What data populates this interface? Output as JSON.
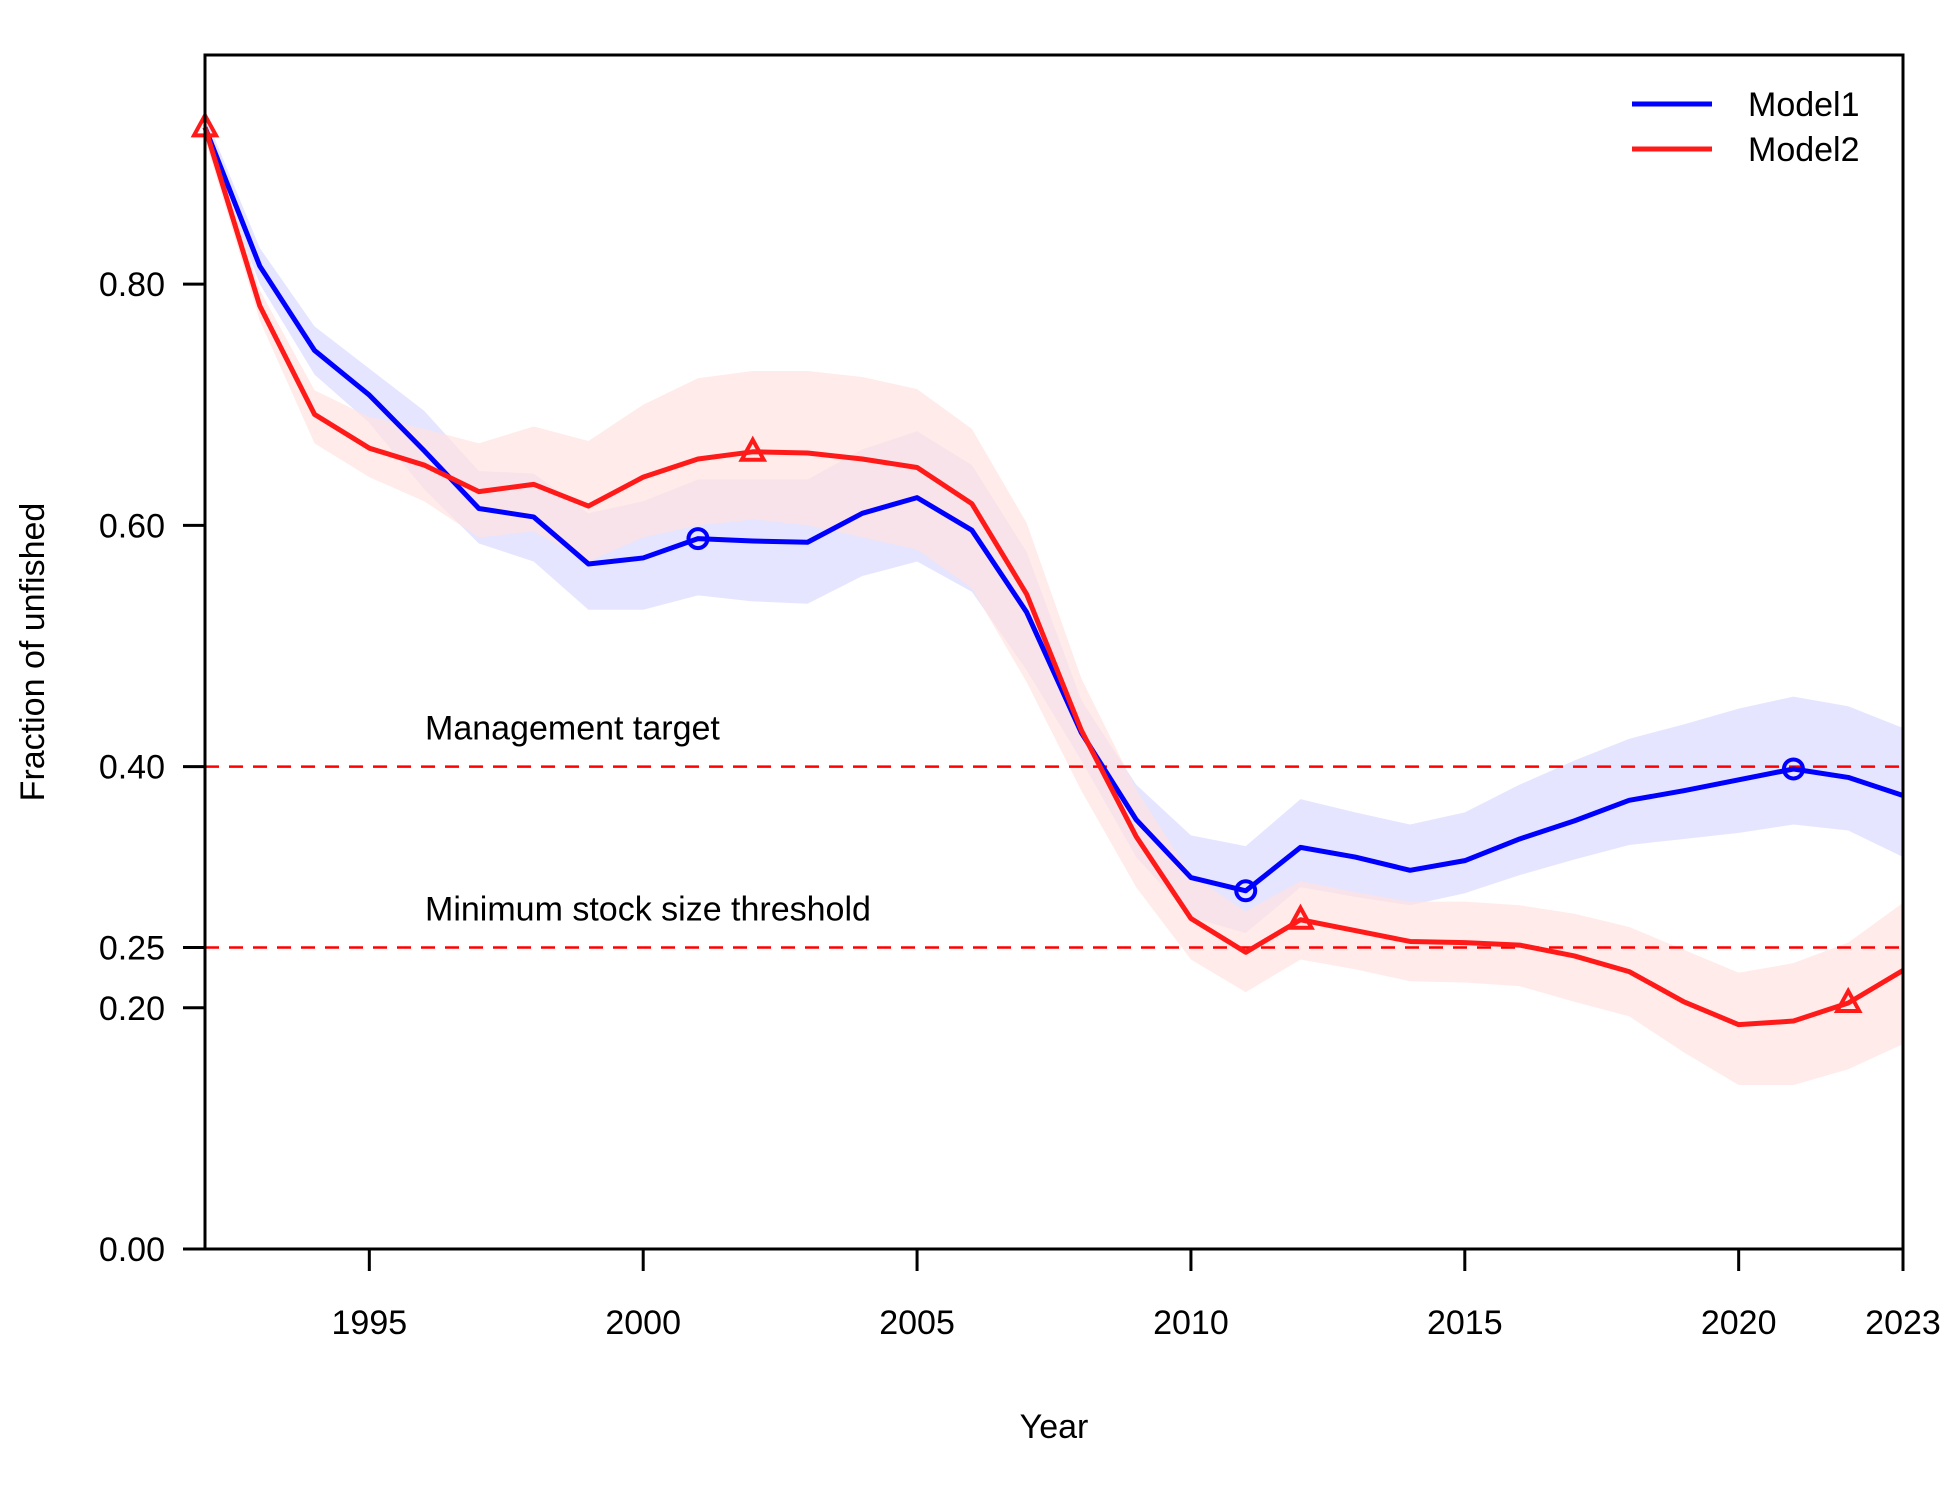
{
  "chart_data": {
    "type": "line",
    "title": "",
    "xlabel": "Year",
    "ylabel": "Fraction of unfished",
    "xlim": [
      1992,
      2023
    ],
    "ylim": [
      0,
      0.99
    ],
    "x_ticks": [
      1995,
      2000,
      2005,
      2010,
      2015,
      2020,
      2023
    ],
    "y_ticks": [
      0.0,
      0.2,
      0.25,
      0.4,
      0.6,
      0.8
    ],
    "y_tick_labels": [
      "0.00",
      "0.20",
      "0.25",
      "0.40",
      "0.60",
      "0.80"
    ],
    "legend": {
      "position": "top-right"
    },
    "reference_lines": [
      {
        "y": 0.4,
        "label": "Management target",
        "color": "#ff0000",
        "style": "dashed"
      },
      {
        "y": 0.25,
        "label": "Minimum stock size threshold",
        "color": "#ff0000",
        "style": "dashed"
      }
    ],
    "x": [
      1992,
      1993,
      1994,
      1995,
      1996,
      1997,
      1998,
      1999,
      2000,
      2001,
      2002,
      2003,
      2004,
      2005,
      2006,
      2007,
      2008,
      2009,
      2010,
      2011,
      2012,
      2013,
      2014,
      2015,
      2016,
      2017,
      2018,
      2019,
      2020,
      2021,
      2022,
      2023
    ],
    "series": [
      {
        "name": "Model1",
        "color": "#0000ff",
        "band_color": "#e0e0ff",
        "marker": "circle",
        "marker_years": [
          2001,
          2011,
          2021
        ],
        "values": [
          0.93,
          0.815,
          0.745,
          0.708,
          0.662,
          0.614,
          0.607,
          0.568,
          0.573,
          0.589,
          0.587,
          0.586,
          0.61,
          0.623,
          0.596,
          0.528,
          0.428,
          0.356,
          0.308,
          0.297,
          0.333,
          0.325,
          0.314,
          0.322,
          0.34,
          0.355,
          0.372,
          0.38,
          0.389,
          0.398,
          0.391,
          0.376
        ],
        "lower": [
          0.92,
          0.8,
          0.725,
          0.685,
          0.63,
          0.585,
          0.57,
          0.53,
          0.53,
          0.542,
          0.537,
          0.535,
          0.558,
          0.57,
          0.545,
          0.48,
          0.405,
          0.325,
          0.275,
          0.262,
          0.3,
          0.292,
          0.285,
          0.295,
          0.31,
          0.323,
          0.335,
          0.34,
          0.345,
          0.352,
          0.347,
          0.325
        ],
        "upper": [
          0.94,
          0.83,
          0.765,
          0.73,
          0.695,
          0.645,
          0.643,
          0.61,
          0.62,
          0.638,
          0.638,
          0.638,
          0.663,
          0.678,
          0.65,
          0.578,
          0.455,
          0.385,
          0.343,
          0.334,
          0.373,
          0.362,
          0.352,
          0.362,
          0.385,
          0.405,
          0.423,
          0.435,
          0.448,
          0.458,
          0.45,
          0.432
        ]
      },
      {
        "name": "Model2",
        "color": "#ff1a1a",
        "band_color": "#ffe3e0",
        "marker": "triangle",
        "marker_years": [
          1992,
          2002,
          2012,
          2022
        ],
        "values": [
          0.93,
          0.782,
          0.692,
          0.664,
          0.65,
          0.628,
          0.634,
          0.616,
          0.64,
          0.655,
          0.661,
          0.66,
          0.655,
          0.648,
          0.618,
          0.543,
          0.43,
          0.342,
          0.274,
          0.246,
          0.273,
          0.264,
          0.255,
          0.254,
          0.252,
          0.243,
          0.23,
          0.205,
          0.186,
          0.189,
          0.204,
          0.231
        ],
        "lower": [
          0.92,
          0.77,
          0.668,
          0.64,
          0.62,
          0.59,
          0.595,
          0.57,
          0.59,
          0.6,
          0.605,
          0.6,
          0.59,
          0.58,
          0.548,
          0.47,
          0.38,
          0.3,
          0.24,
          0.213,
          0.24,
          0.232,
          0.222,
          0.221,
          0.218,
          0.205,
          0.193,
          0.163,
          0.136,
          0.136,
          0.149,
          0.17
        ],
        "upper": [
          0.94,
          0.795,
          0.712,
          0.69,
          0.68,
          0.668,
          0.682,
          0.67,
          0.7,
          0.722,
          0.728,
          0.728,
          0.723,
          0.713,
          0.68,
          0.602,
          0.473,
          0.381,
          0.31,
          0.28,
          0.305,
          0.296,
          0.288,
          0.288,
          0.285,
          0.278,
          0.267,
          0.248,
          0.229,
          0.237,
          0.254,
          0.287
        ]
      }
    ]
  }
}
